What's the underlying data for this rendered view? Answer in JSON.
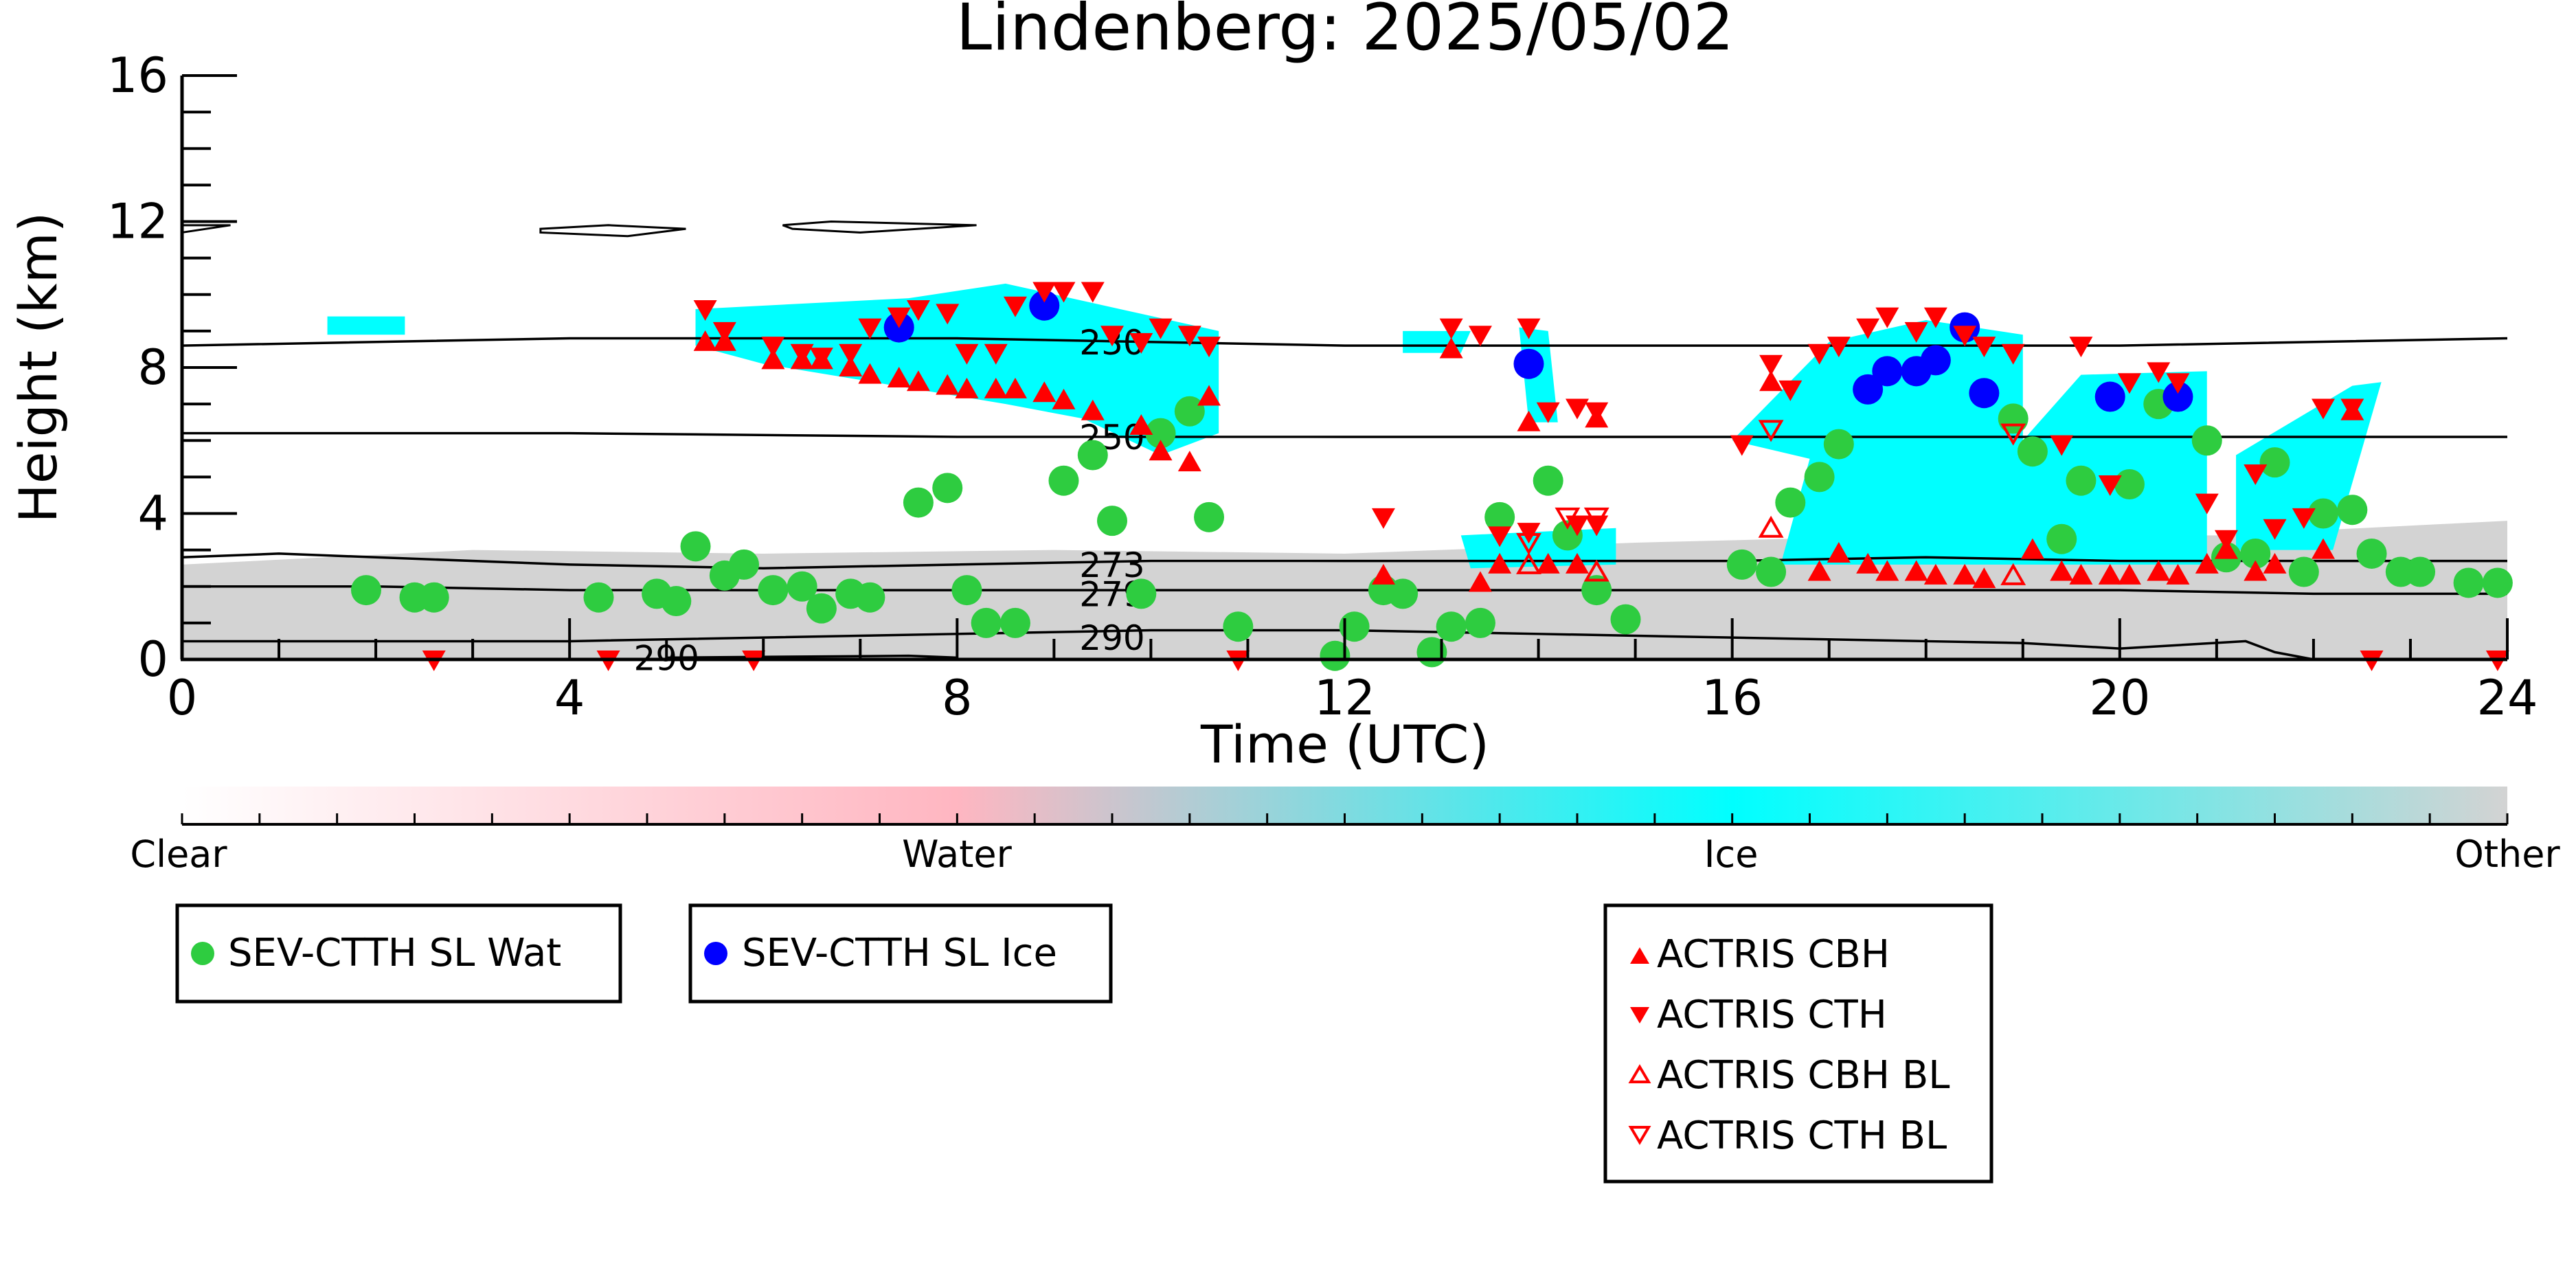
{
  "chart_data": {
    "type": "scatter",
    "title": "Lindenberg: 2025/05/02",
    "xlabel": "Time (UTC)",
    "ylabel": "Height (km)",
    "xlim": [
      0,
      24
    ],
    "ylim": [
      0,
      16
    ],
    "xticks": [
      0,
      4,
      8,
      12,
      16,
      20,
      24
    ],
    "yticks": [
      0,
      4,
      8,
      12,
      16
    ],
    "grid": false,
    "colorbar": {
      "labels": [
        "Clear",
        "Water",
        "Ice",
        "Other"
      ],
      "colors": [
        "#ffffff",
        "#ffb6c1",
        "#00ffff",
        "#d3d3d3"
      ]
    },
    "isotherm_labels": [
      "230",
      "250",
      "273",
      "279",
      "290",
      "290"
    ],
    "isotherms": [
      {
        "label": "230",
        "points": [
          [
            0,
            8.6
          ],
          [
            4,
            8.8
          ],
          [
            8,
            8.8
          ],
          [
            12,
            8.6
          ],
          [
            16,
            8.6
          ],
          [
            20,
            8.6
          ],
          [
            24,
            8.8
          ]
        ],
        "label_at": [
          9.6,
          8.7
        ]
      },
      {
        "label": "250",
        "points": [
          [
            0,
            6.2
          ],
          [
            4,
            6.2
          ],
          [
            8,
            6.1
          ],
          [
            12,
            6.1
          ],
          [
            16,
            6.1
          ],
          [
            20,
            6.1
          ],
          [
            24,
            6.1
          ]
        ],
        "label_at": [
          9.6,
          6.1
        ]
      },
      {
        "label": "273",
        "points": [
          [
            0,
            2.8
          ],
          [
            1,
            2.9
          ],
          [
            2,
            2.8
          ],
          [
            4,
            2.6
          ],
          [
            6,
            2.5
          ],
          [
            8,
            2.6
          ],
          [
            10,
            2.7
          ],
          [
            12,
            2.7
          ],
          [
            14,
            2.7
          ],
          [
            16,
            2.7
          ],
          [
            18,
            2.8
          ],
          [
            20,
            2.7
          ],
          [
            22,
            2.7
          ],
          [
            24,
            2.7
          ]
        ],
        "label_at": [
          9.6,
          2.6
        ]
      },
      {
        "label": "279",
        "points": [
          [
            0,
            2.0
          ],
          [
            2,
            2.0
          ],
          [
            4,
            1.9
          ],
          [
            6,
            1.9
          ],
          [
            8,
            1.9
          ],
          [
            10,
            1.9
          ],
          [
            12,
            1.9
          ],
          [
            14,
            1.9
          ],
          [
            16,
            1.9
          ],
          [
            18,
            1.9
          ],
          [
            20,
            1.9
          ],
          [
            22,
            1.8
          ],
          [
            24,
            1.8
          ]
        ],
        "label_at": [
          9.6,
          1.8
        ]
      },
      {
        "label": "290",
        "points": [
          [
            0,
            0.5
          ],
          [
            4,
            0.5
          ],
          [
            8,
            0.7
          ],
          [
            10,
            0.8
          ],
          [
            12,
            0.8
          ],
          [
            14,
            0.7
          ],
          [
            16,
            0.6
          ],
          [
            18,
            0.5
          ],
          [
            19,
            0.45
          ],
          [
            20,
            0.3
          ],
          [
            21.3,
            0.5
          ],
          [
            21.6,
            0.2
          ],
          [
            22,
            0
          ],
          [
            24,
            0
          ]
        ],
        "label_at": [
          9.6,
          0.6
        ]
      },
      {
        "label": "290",
        "points": [
          [
            5,
            0.05
          ],
          [
            7.5,
            0.1
          ],
          [
            8,
            0.05
          ]
        ],
        "label_at": [
          5.0,
          0.05
        ]
      }
    ],
    "series": [
      {
        "name": "SEV-CTTH SL Wat",
        "marker": "circle",
        "color": "#2ecc40",
        "points": [
          [
            1.9,
            1.9
          ],
          [
            2.4,
            1.7
          ],
          [
            2.6,
            1.7
          ],
          [
            4.3,
            1.7
          ],
          [
            4.9,
            1.8
          ],
          [
            5.1,
            1.6
          ],
          [
            5.3,
            3.1
          ],
          [
            5.6,
            2.3
          ],
          [
            5.8,
            2.6
          ],
          [
            6.1,
            1.9
          ],
          [
            6.4,
            2.0
          ],
          [
            6.6,
            1.4
          ],
          [
            6.9,
            1.8
          ],
          [
            7.1,
            1.7
          ],
          [
            7.6,
            4.3
          ],
          [
            7.9,
            4.7
          ],
          [
            8.1,
            1.9
          ],
          [
            8.3,
            1.0
          ],
          [
            8.6,
            1.0
          ],
          [
            9.1,
            4.9
          ],
          [
            9.4,
            5.6
          ],
          [
            9.6,
            3.8
          ],
          [
            9.9,
            1.8
          ],
          [
            10.1,
            6.2
          ],
          [
            10.4,
            6.8
          ],
          [
            10.6,
            3.9
          ],
          [
            10.9,
            0.9
          ],
          [
            11.9,
            0.1
          ],
          [
            12.1,
            0.9
          ],
          [
            12.4,
            1.9
          ],
          [
            12.6,
            1.8
          ],
          [
            12.9,
            0.2
          ],
          [
            13.1,
            0.9
          ],
          [
            13.4,
            1.0
          ],
          [
            13.6,
            3.9
          ],
          [
            14.3,
            3.4
          ],
          [
            14.1,
            4.9
          ],
          [
            14.6,
            1.9
          ],
          [
            14.9,
            1.1
          ],
          [
            16.1,
            2.6
          ],
          [
            16.4,
            2.4
          ],
          [
            16.6,
            4.3
          ],
          [
            16.9,
            5.0
          ],
          [
            17.1,
            5.9
          ],
          [
            18.9,
            6.6
          ],
          [
            19.1,
            5.7
          ],
          [
            19.4,
            3.3
          ],
          [
            19.6,
            4.9
          ],
          [
            20.1,
            4.8
          ],
          [
            20.4,
            7.0
          ],
          [
            20.9,
            6.0
          ],
          [
            21.1,
            2.8
          ],
          [
            21.4,
            2.9
          ],
          [
            21.6,
            5.4
          ],
          [
            21.9,
            2.4
          ],
          [
            22.1,
            4.0
          ],
          [
            22.4,
            4.1
          ],
          [
            22.6,
            2.9
          ],
          [
            22.9,
            2.4
          ],
          [
            23.1,
            2.4
          ],
          [
            23.6,
            2.1
          ],
          [
            23.9,
            2.1
          ]
        ]
      },
      {
        "name": "SEV-CTTH SL Ice",
        "marker": "circle",
        "color": "#0000ff",
        "points": [
          [
            7.4,
            9.1
          ],
          [
            8.9,
            9.7
          ],
          [
            13.9,
            8.1
          ],
          [
            17.4,
            7.4
          ],
          [
            17.6,
            7.9
          ],
          [
            17.9,
            7.9
          ],
          [
            18.1,
            8.2
          ],
          [
            18.4,
            9.1
          ],
          [
            18.6,
            7.3
          ],
          [
            19.9,
            7.2
          ],
          [
            20.6,
            7.2
          ]
        ]
      },
      {
        "name": "ACTRIS CBH",
        "marker": "triangle-up",
        "color": "#ff0000",
        "points": [
          [
            5.4,
            8.7
          ],
          [
            5.6,
            8.7
          ],
          [
            6.1,
            8.2
          ],
          [
            6.4,
            8.2
          ],
          [
            6.6,
            8.2
          ],
          [
            6.9,
            8.0
          ],
          [
            7.1,
            7.8
          ],
          [
            7.4,
            7.7
          ],
          [
            7.6,
            7.6
          ],
          [
            7.9,
            7.5
          ],
          [
            8.1,
            7.4
          ],
          [
            8.4,
            7.4
          ],
          [
            8.6,
            7.4
          ],
          [
            8.9,
            7.3
          ],
          [
            9.1,
            7.1
          ],
          [
            9.4,
            6.8
          ],
          [
            9.9,
            6.4
          ],
          [
            10.1,
            5.7
          ],
          [
            10.4,
            5.4
          ],
          [
            10.6,
            7.2
          ],
          [
            12.4,
            2.3
          ],
          [
            13.1,
            8.5
          ],
          [
            13.4,
            2.1
          ],
          [
            13.6,
            2.6
          ],
          [
            13.9,
            6.5
          ],
          [
            14.1,
            2.6
          ],
          [
            14.4,
            2.6
          ],
          [
            14.6,
            6.6
          ],
          [
            16.4,
            7.6
          ],
          [
            16.9,
            2.4
          ],
          [
            17.1,
            2.9
          ],
          [
            17.4,
            2.6
          ],
          [
            17.6,
            2.4
          ],
          [
            17.9,
            2.4
          ],
          [
            18.1,
            2.3
          ],
          [
            18.4,
            2.3
          ],
          [
            18.6,
            2.2
          ],
          [
            19.1,
            3.0
          ],
          [
            19.4,
            2.4
          ],
          [
            19.6,
            2.3
          ],
          [
            19.9,
            2.3
          ],
          [
            20.1,
            2.3
          ],
          [
            20.4,
            2.4
          ],
          [
            20.6,
            2.3
          ],
          [
            20.9,
            2.6
          ],
          [
            21.1,
            3.0
          ],
          [
            21.4,
            2.4
          ],
          [
            21.6,
            2.6
          ],
          [
            22.1,
            3.0
          ],
          [
            22.4,
            6.8
          ]
        ]
      },
      {
        "name": "ACTRIS CTH",
        "marker": "triangle-down",
        "color": "#ff0000",
        "points": [
          [
            2.6,
            0.0
          ],
          [
            4.4,
            0.0
          ],
          [
            5.9,
            0.0
          ],
          [
            5.4,
            9.6
          ],
          [
            5.6,
            9.0
          ],
          [
            6.1,
            8.6
          ],
          [
            6.4,
            8.4
          ],
          [
            6.6,
            8.3
          ],
          [
            6.9,
            8.4
          ],
          [
            7.1,
            9.1
          ],
          [
            7.4,
            9.4
          ],
          [
            7.6,
            9.6
          ],
          [
            7.9,
            9.5
          ],
          [
            8.1,
            8.4
          ],
          [
            8.4,
            8.4
          ],
          [
            8.6,
            9.7
          ],
          [
            8.9,
            10.1
          ],
          [
            9.1,
            10.1
          ],
          [
            9.4,
            10.1
          ],
          [
            9.6,
            8.9
          ],
          [
            9.9,
            8.7
          ],
          [
            10.1,
            9.1
          ],
          [
            10.4,
            8.9
          ],
          [
            10.6,
            8.6
          ],
          [
            10.9,
            0.0
          ],
          [
            12.4,
            3.9
          ],
          [
            13.1,
            9.1
          ],
          [
            13.4,
            8.9
          ],
          [
            13.9,
            9.1
          ],
          [
            13.6,
            3.4
          ],
          [
            13.9,
            3.5
          ],
          [
            14.4,
            3.7
          ],
          [
            14.6,
            3.7
          ],
          [
            14.1,
            6.8
          ],
          [
            14.4,
            6.9
          ],
          [
            14.6,
            6.8
          ],
          [
            16.1,
            5.9
          ],
          [
            16.4,
            8.1
          ],
          [
            16.6,
            7.4
          ],
          [
            16.9,
            8.4
          ],
          [
            17.1,
            8.6
          ],
          [
            17.4,
            9.1
          ],
          [
            17.6,
            9.4
          ],
          [
            17.9,
            9.0
          ],
          [
            18.1,
            9.4
          ],
          [
            18.4,
            8.9
          ],
          [
            18.6,
            8.6
          ],
          [
            18.9,
            8.4
          ],
          [
            19.4,
            5.9
          ],
          [
            19.9,
            4.8
          ],
          [
            19.6,
            8.6
          ],
          [
            20.1,
            7.6
          ],
          [
            20.4,
            7.9
          ],
          [
            20.6,
            7.6
          ],
          [
            20.9,
            4.3
          ],
          [
            21.1,
            3.3
          ],
          [
            21.4,
            5.1
          ],
          [
            21.6,
            3.6
          ],
          [
            21.9,
            3.9
          ],
          [
            22.1,
            6.9
          ],
          [
            22.4,
            6.9
          ],
          [
            22.6,
            0.0
          ],
          [
            23.9,
            0.0
          ]
        ]
      },
      {
        "name": "ACTRIS CBH BL",
        "marker": "triangle-up-open",
        "color": "#ff0000",
        "points": [
          [
            13.9,
            2.6
          ],
          [
            14.6,
            2.4
          ],
          [
            16.4,
            3.6
          ],
          [
            18.9,
            2.3
          ]
        ]
      },
      {
        "name": "ACTRIS CTH BL",
        "marker": "triangle-down-open",
        "color": "#ff0000",
        "points": [
          [
            13.9,
            3.2
          ],
          [
            14.3,
            3.9
          ],
          [
            14.6,
            3.9
          ],
          [
            16.4,
            6.3
          ],
          [
            18.9,
            6.2
          ]
        ]
      }
    ],
    "legends": [
      {
        "position": "below-left",
        "entries": [
          "SEV-CTTH SL Wat"
        ]
      },
      {
        "position": "below-center-left",
        "entries": [
          "SEV-CTTH SL Ice"
        ]
      },
      {
        "position": "below-center-right",
        "entries": [
          "ACTRIS CBH",
          "ACTRIS CTH",
          "ACTRIS CBH BL",
          "ACTRIS CTH BL"
        ]
      }
    ]
  }
}
